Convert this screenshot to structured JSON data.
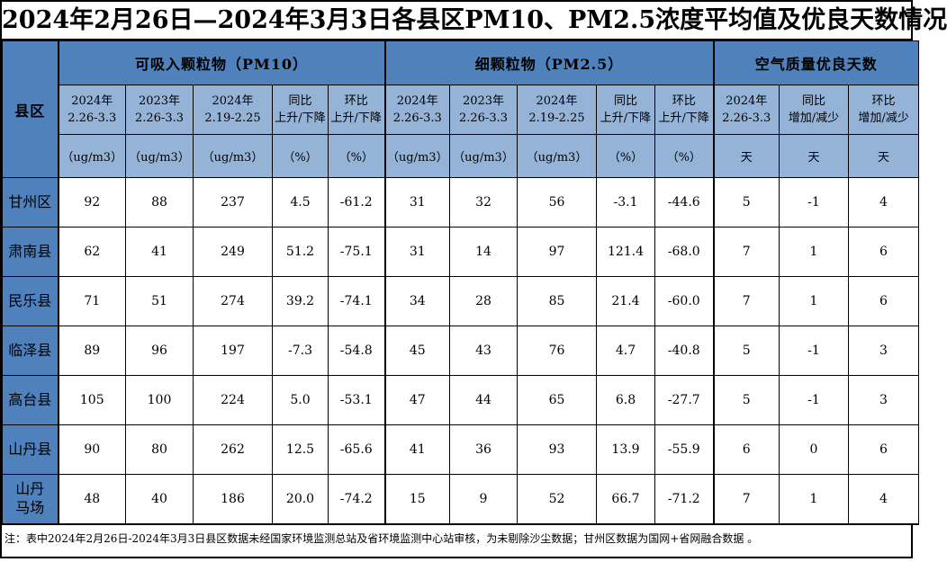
{
  "title": "2024年2月26日—2024年3月3日各县区PM10、PM2.5浓度平均值及优良天数情况",
  "colors": {
    "header_dark_blue": "#4f81bd",
    "header_light_blue": "#95b3d7",
    "border_black": "#000000",
    "cell_white": "#ffffff"
  },
  "table": {
    "corner_label": "县区",
    "groups": [
      {
        "label": "可吸入颗粒物（PM10）",
        "cols": 5
      },
      {
        "label": "细颗粒物（PM2.5）",
        "cols": 5
      },
      {
        "label": "空气质量优良天数",
        "cols": 3
      }
    ],
    "columns": [
      {
        "period": "2024年\n2.26-3.3",
        "unit": "（ug/m3）"
      },
      {
        "period": "2023年\n2.26-3.3",
        "unit": "（ug/m3）"
      },
      {
        "period": "2024年\n2.19-2.25",
        "unit": "（ug/m3）"
      },
      {
        "period": "同比\n上升/下降",
        "unit": "（%）"
      },
      {
        "period": "环比\n上升/下降",
        "unit": "（%）"
      },
      {
        "period": "2024年\n2.26-3.3",
        "unit": "（ug/m3）"
      },
      {
        "period": "2023年\n2.26-3.3",
        "unit": "（ug/m3）"
      },
      {
        "period": "2024年\n2.19-2.25",
        "unit": "（ug/m3）"
      },
      {
        "period": "同比\n上升/下降",
        "unit": "（%）"
      },
      {
        "period": "环比\n上升/下降",
        "unit": "（%）"
      },
      {
        "period": "2024年\n2.26-3.3",
        "unit": "天"
      },
      {
        "period": "同比\n增加/减少",
        "unit": "天"
      },
      {
        "period": "环比\n增加/减少",
        "unit": "天"
      }
    ],
    "rows": [
      {
        "name": "甘州区",
        "values": [
          "92",
          "88",
          "237",
          "4.5",
          "-61.2",
          "31",
          "32",
          "56",
          "-3.1",
          "-44.6",
          "5",
          "-1",
          "4"
        ]
      },
      {
        "name": "肃南县",
        "values": [
          "62",
          "41",
          "249",
          "51.2",
          "-75.1",
          "31",
          "14",
          "97",
          "121.4",
          "-68.0",
          "7",
          "1",
          "6"
        ]
      },
      {
        "name": "民乐县",
        "values": [
          "71",
          "51",
          "274",
          "39.2",
          "-74.1",
          "34",
          "28",
          "85",
          "21.4",
          "-60.0",
          "7",
          "1",
          "6"
        ]
      },
      {
        "name": "临泽县",
        "values": [
          "89",
          "96",
          "197",
          "-7.3",
          "-54.8",
          "45",
          "43",
          "76",
          "4.7",
          "-40.8",
          "5",
          "-1",
          "3"
        ]
      },
      {
        "name": "高台县",
        "values": [
          "105",
          "100",
          "224",
          "5.0",
          "-53.1",
          "47",
          "44",
          "65",
          "6.8",
          "-27.7",
          "5",
          "-1",
          "3"
        ]
      },
      {
        "name": "山丹县",
        "values": [
          "90",
          "80",
          "262",
          "12.5",
          "-65.6",
          "41",
          "36",
          "93",
          "13.9",
          "-55.9",
          "6",
          "0",
          "6"
        ]
      },
      {
        "name": "山丹\n马场",
        "values": [
          "48",
          "40",
          "186",
          "20.0",
          "-74.2",
          "15",
          "9",
          "52",
          "66.7",
          "-71.2",
          "7",
          "1",
          "4"
        ]
      }
    ]
  },
  "footnote": "注：表中2024年2月26日-2024年3月3日县区数据未经国家环境监测总站及省环境监测中心站审核，为未剔除沙尘数据；甘州区数据为国网+省网融合数据 。"
}
